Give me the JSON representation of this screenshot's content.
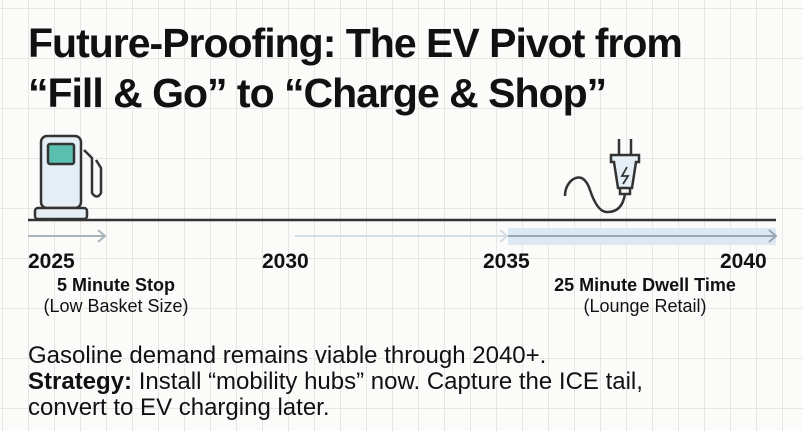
{
  "title": {
    "line1": "Future-Proofing: The EV Pivot from",
    "line2": "“Fill & Go” to “Charge & Shop”"
  },
  "timeline": {
    "years": [
      "2025",
      "2030",
      "2035",
      "2040"
    ],
    "left": {
      "label": "5 Minute Stop",
      "detail": "(Low Basket Size)",
      "icon": "gas-pump-icon"
    },
    "right": {
      "label": "25 Minute Dwell Time",
      "detail": "(Lounge Retail)",
      "icon": "ev-plug-icon"
    }
  },
  "body": {
    "line1": "Gasoline demand remains viable through 2040+.",
    "strategy_label": "Strategy:",
    "strategy_text": " Install “mobility hubs” now. Capture the ICE tail,",
    "line3": "convert to EV charging later."
  },
  "colors": {
    "accent": "#5bbfb0",
    "highlight": "#dce9f2"
  }
}
